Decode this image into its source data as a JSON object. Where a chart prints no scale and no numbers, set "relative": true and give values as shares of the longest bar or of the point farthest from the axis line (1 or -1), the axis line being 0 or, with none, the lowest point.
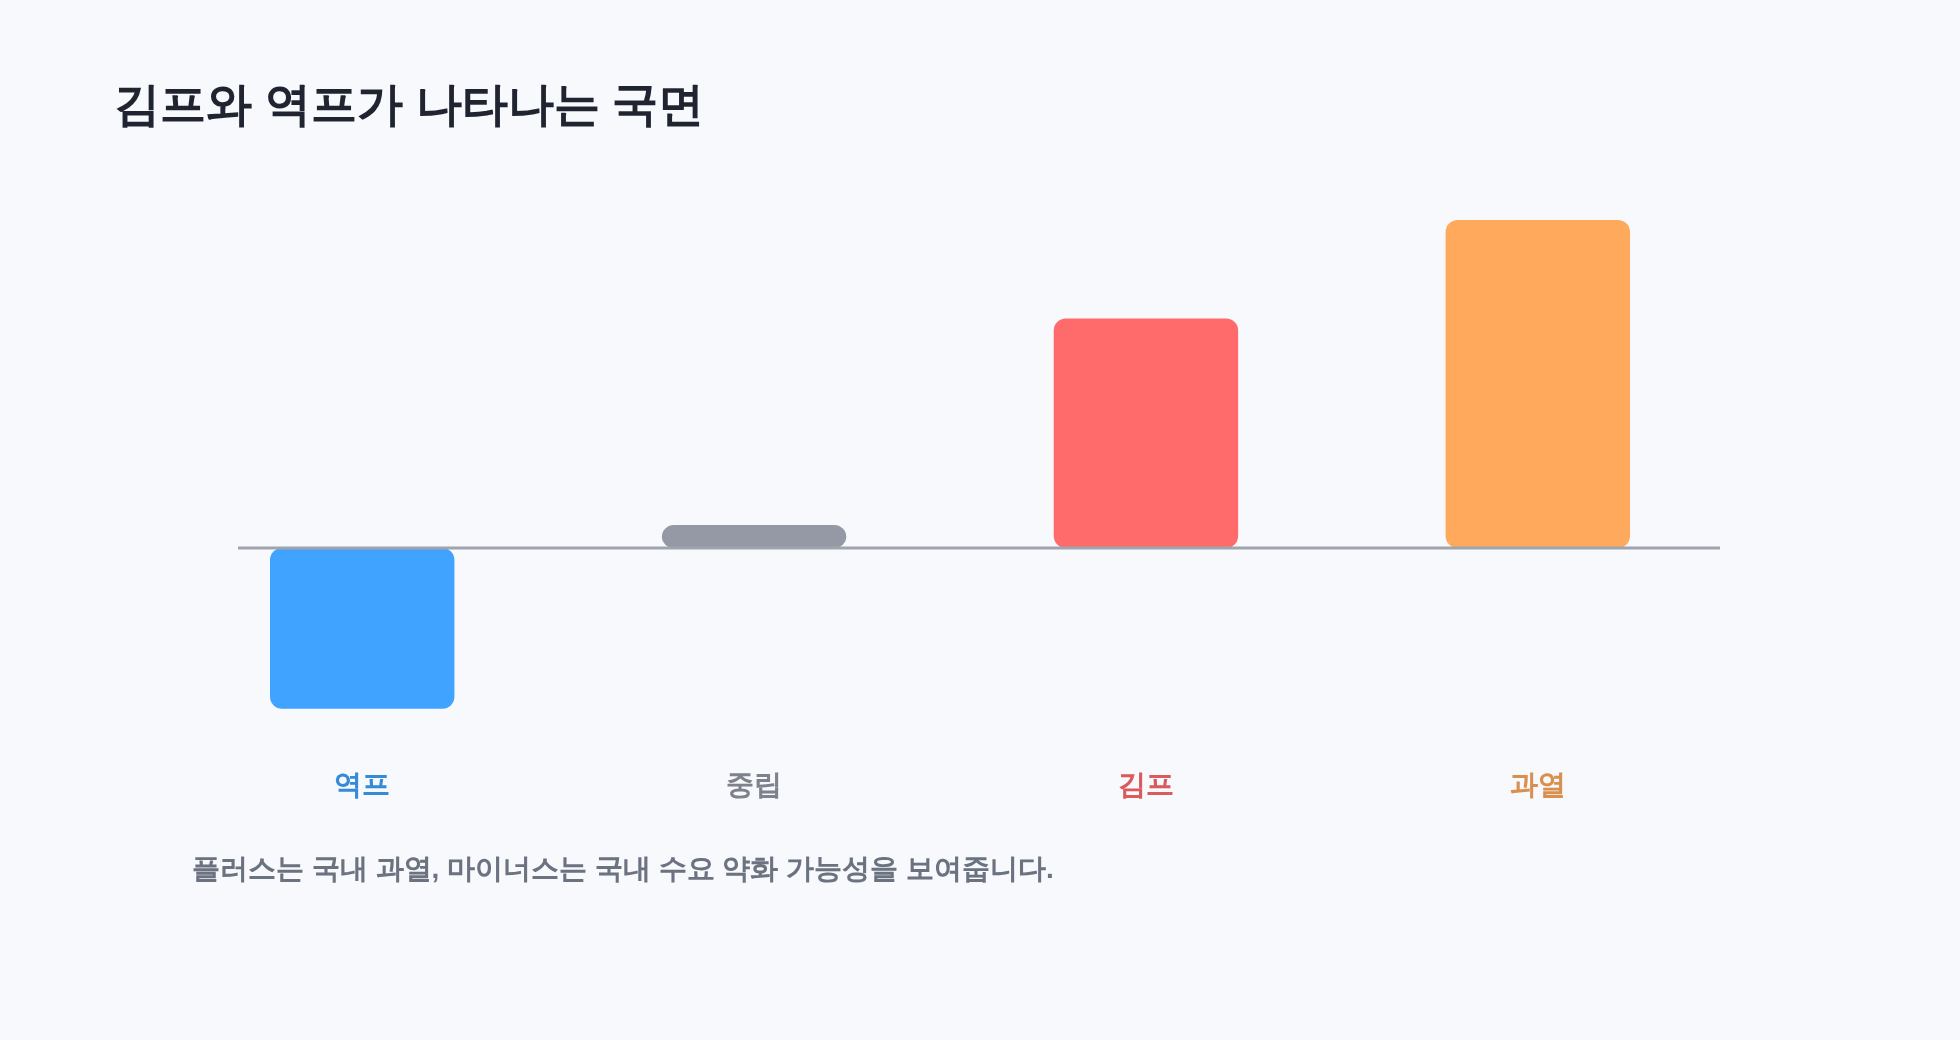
{
  "chart_data": {
    "type": "bar",
    "title": "김프와 역프가 나타나는 국면",
    "relative": true,
    "categories": [
      "역프",
      "중립",
      "김프",
      "과열"
    ],
    "values": [
      -0.49,
      0.07,
      0.7,
      1
    ],
    "colors": [
      "#3fa3ff",
      "#9499a5",
      "#ff6b6b",
      "#ffa95c"
    ],
    "annotations": [
      "플러스는 국내 과열, 마이너스는 국내 수요 약화 가능성을 보여줍니다."
    ]
  }
}
